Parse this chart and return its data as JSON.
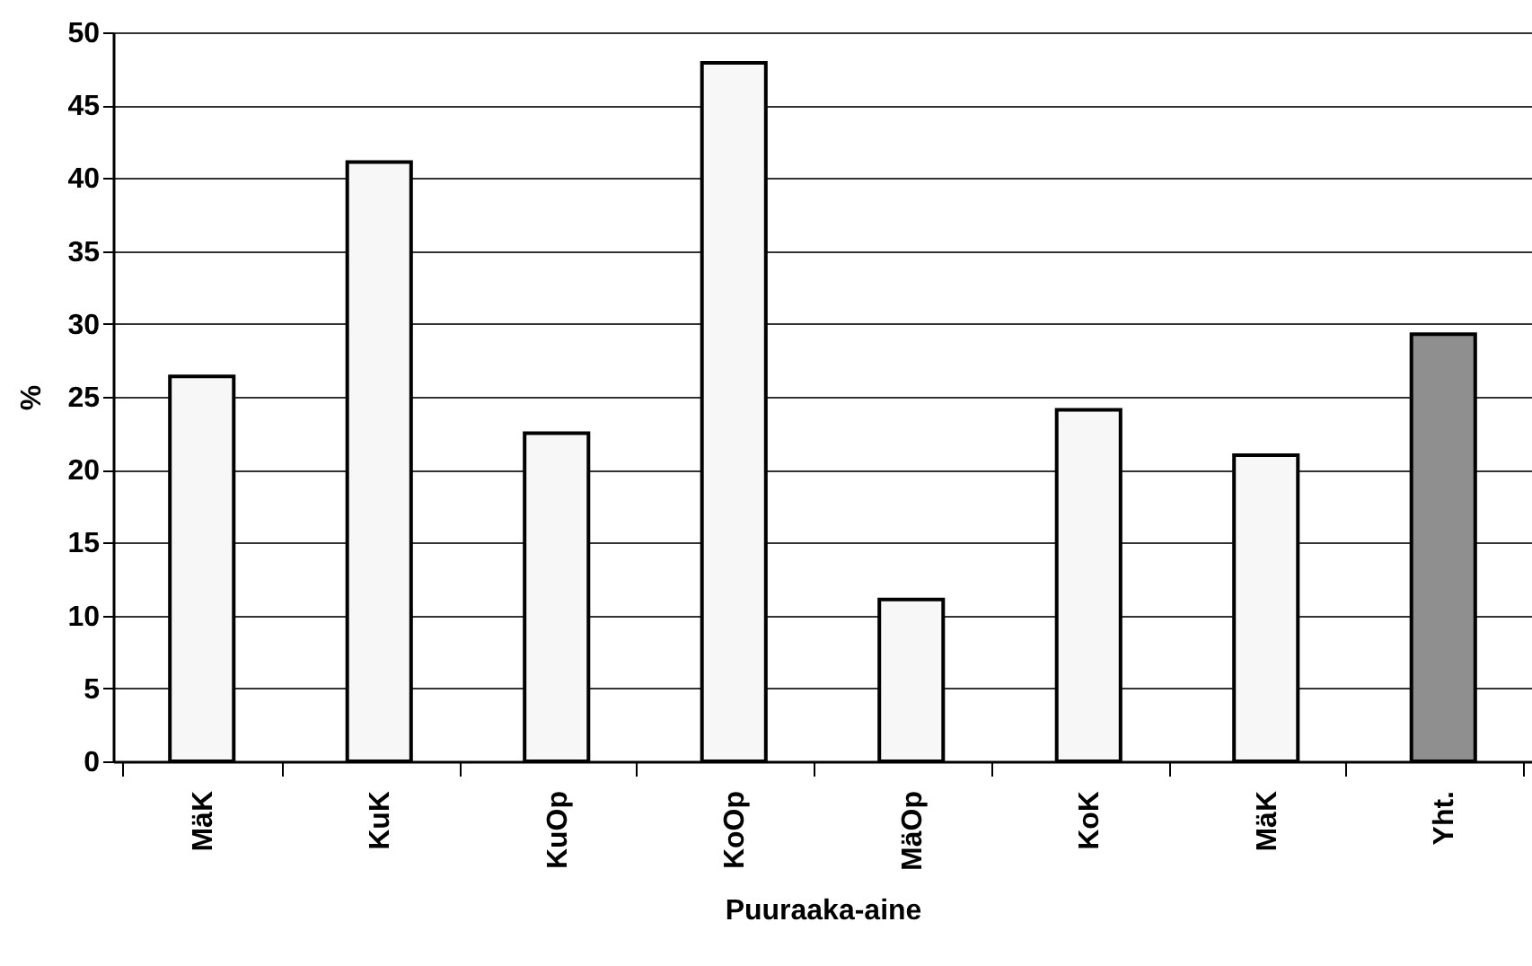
{
  "chart_data": {
    "type": "bar",
    "xlabel": "Puuraaka-aine",
    "ylabel": "%",
    "categories": [
      "MäK",
      "KuK",
      "KuOp",
      "KoOp",
      "MäOp",
      "KoK",
      "MäK",
      "Yht."
    ],
    "values": [
      26.4,
      41.1,
      22.5,
      47.9,
      11.1,
      24.1,
      21.0,
      29.3
    ],
    "colors": [
      "#f7f7f7",
      "#f7f7f7",
      "#f7f7f7",
      "#f7f7f7",
      "#f7f7f7",
      "#f7f7f7",
      "#f7f7f7",
      "#8f8f8f"
    ],
    "ylim": [
      0,
      50
    ],
    "yticks": [
      0,
      5,
      10,
      15,
      20,
      25,
      30,
      35,
      40,
      45,
      50
    ],
    "grid": "y"
  }
}
